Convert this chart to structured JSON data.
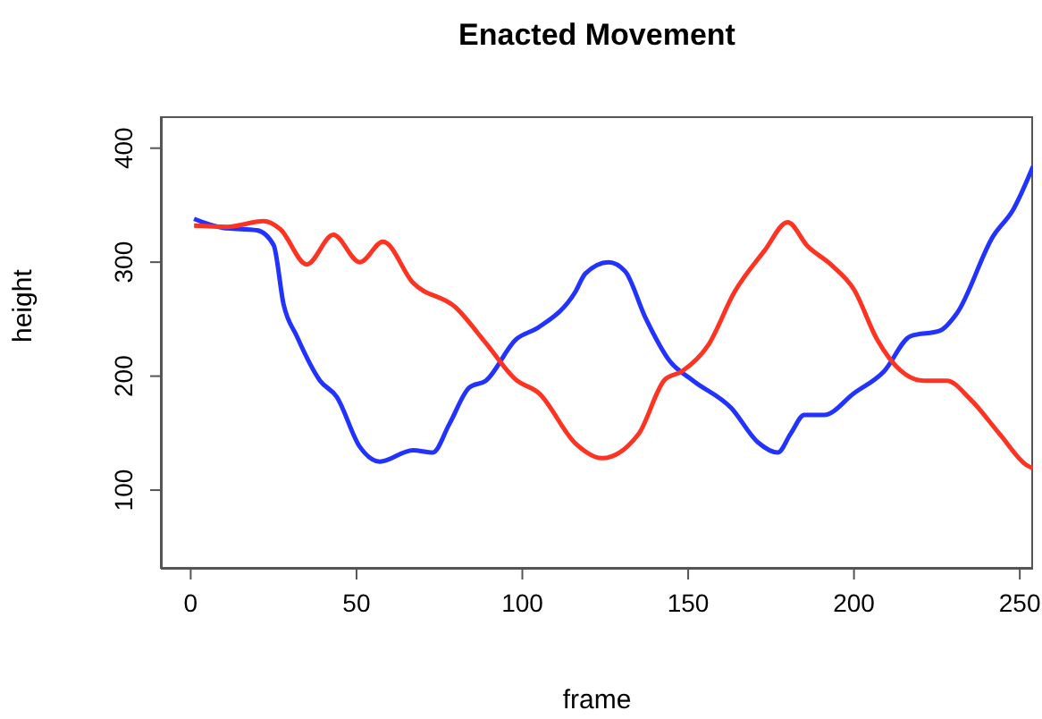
{
  "chart_data": {
    "type": "line",
    "title": "Enacted Movement",
    "xlabel": "frame",
    "ylabel": "height",
    "xlim": [
      -9,
      254
    ],
    "xticks": [
      0,
      50,
      100,
      150,
      200,
      250
    ],
    "ylim": [
      31,
      428
    ],
    "yticks": [
      100,
      200,
      300,
      400
    ],
    "marker": "none",
    "line_style": "solid",
    "series": [
      {
        "color": "#2233ff",
        "x": [
          1,
          10,
          20,
          25,
          28,
          32,
          39,
          44,
          51,
          57,
          67,
          73,
          78,
          84,
          89,
          98,
          105,
          116,
          119,
          126,
          131,
          137,
          144.5,
          151.5,
          163,
          171,
          177,
          181,
          185,
          191,
          200,
          209,
          217,
          226,
          231,
          242,
          248,
          254
        ],
        "values": [
          338,
          330,
          328,
          315,
          263,
          235,
          196,
          182,
          138,
          125,
          135,
          133,
          158,
          190,
          196,
          232,
          243,
          274,
          290,
          300,
          292,
          252,
          213,
          196,
          172,
          142,
          133,
          150,
          166,
          166,
          185,
          204,
          235,
          240,
          255,
          323,
          346,
          384
        ]
      },
      {
        "color": "#ff3322",
        "x": [
          1,
          11,
          22,
          27,
          35,
          43,
          51,
          58,
          67,
          80,
          89,
          98,
          105,
          116,
          124,
          135,
          143,
          148,
          156,
          164,
          173,
          180,
          186,
          193,
          200,
          207,
          214,
          221,
          228,
          235,
          244,
          252,
          254
        ],
        "values": [
          332,
          331,
          336,
          329,
          298,
          324,
          300,
          318,
          282,
          260,
          229,
          197,
          185,
          141,
          128,
          149,
          197,
          204,
          227,
          274,
          310,
          335,
          314,
          298,
          276,
          232,
          205,
          196,
          196,
          180,
          149,
          122,
          119
        ]
      }
    ]
  }
}
